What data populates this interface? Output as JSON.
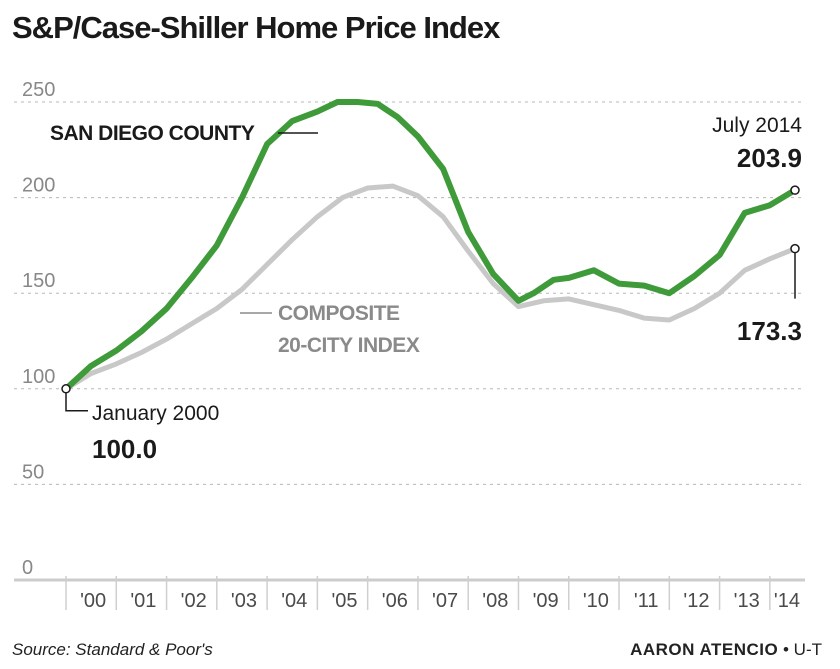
{
  "chart_data": {
    "type": "line",
    "title": "S&P/Case-Shiller Home Price Index",
    "ylim": [
      0,
      250
    ],
    "yticks": [
      "250",
      "200",
      "150",
      "100",
      "50",
      "0"
    ],
    "xticks": [
      "'00",
      "'01",
      "'02",
      "'03",
      "'04",
      "'05",
      "'06",
      "'07",
      "'08",
      "'09",
      "'10",
      "'11",
      "'12",
      "'13",
      "'14"
    ],
    "grid": true,
    "series": [
      {
        "name": "SAN DIEGO COUNTY",
        "color": "#3f9b3a",
        "x": [
          2000.0,
          2000.5,
          2001.0,
          2001.5,
          2002.0,
          2002.5,
          2003.0,
          2003.5,
          2004.0,
          2004.5,
          2005.0,
          2005.4,
          2005.8,
          2006.2,
          2006.6,
          2007.0,
          2007.5,
          2008.0,
          2008.5,
          2009.0,
          2009.3,
          2009.7,
          2010.0,
          2010.5,
          2011.0,
          2011.5,
          2012.0,
          2012.5,
          2013.0,
          2013.5,
          2014.0,
          2014.5
        ],
        "values": [
          100,
          112,
          120,
          130,
          142,
          158,
          175,
          200,
          228,
          240,
          245,
          250,
          250,
          249,
          242,
          232,
          215,
          182,
          160,
          146,
          150,
          157,
          158,
          162,
          155,
          154,
          150,
          159,
          170,
          192,
          196,
          203.9
        ]
      },
      {
        "name": "COMPOSITE 20-CITY INDEX",
        "color": "#c8c8c8",
        "x": [
          2000.0,
          2000.5,
          2001.0,
          2001.5,
          2002.0,
          2002.5,
          2003.0,
          2003.5,
          2004.0,
          2004.5,
          2005.0,
          2005.5,
          2006.0,
          2006.5,
          2007.0,
          2007.5,
          2008.0,
          2008.5,
          2009.0,
          2009.5,
          2010.0,
          2010.5,
          2011.0,
          2011.5,
          2012.0,
          2012.5,
          2013.0,
          2013.5,
          2014.0,
          2014.5
        ],
        "values": [
          100,
          108,
          113,
          119,
          126,
          134,
          142,
          152,
          165,
          178,
          190,
          200,
          205,
          206,
          201,
          190,
          172,
          155,
          143,
          146,
          147,
          144,
          141,
          137,
          136,
          142,
          150,
          162,
          168,
          173.3
        ]
      }
    ],
    "annotations": {
      "start_date": "January 2000",
      "start_value": "100.0",
      "end_date": "July 2014",
      "end_sd_value": "203.9",
      "end_comp_value": "173.3",
      "sd_label": "SAN DIEGO COUNTY",
      "comp_label_line1": "COMPOSITE",
      "comp_label_line2": "20-CITY INDEX"
    }
  },
  "footer": {
    "source": "Source: Standard & Poor's",
    "credit_name": "AARON ATENCIO",
    "credit_sep": "•",
    "credit_org": "U-T"
  }
}
